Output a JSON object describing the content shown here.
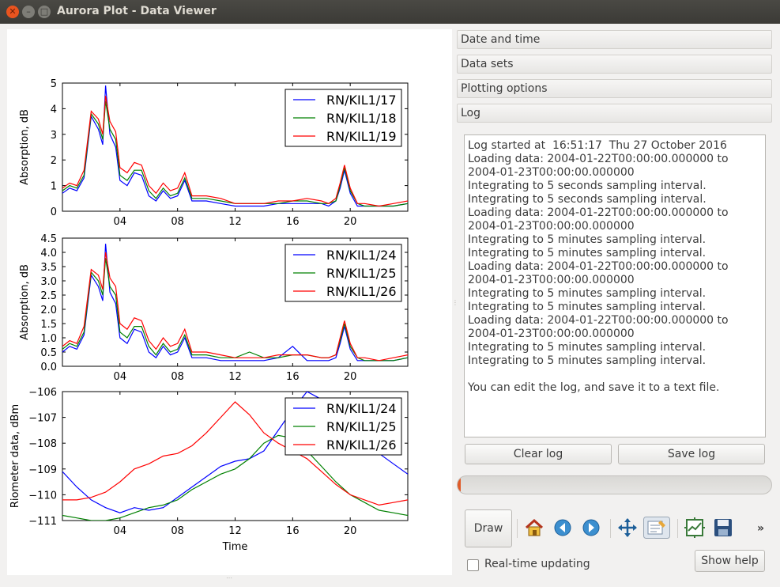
{
  "window": {
    "title": "Aurora Plot - Data Viewer"
  },
  "sections": [
    "Date and time",
    "Data sets",
    "Plotting options",
    "Log"
  ],
  "log": {
    "lines": [
      "Log started at  16:51:17  Thu 27 October 2016",
      "Loading data: 2004-01-22T00:00:00.000000 to",
      "2004-01-23T00:00:00.000000",
      "Integrating to 5 seconds sampling interval.",
      "Integrating to 5 seconds sampling interval.",
      "Loading data: 2004-01-22T00:00:00.000000 to",
      "2004-01-23T00:00:00.000000",
      "Integrating to 5 minutes sampling interval.",
      "Integrating to 5 minutes sampling interval.",
      "Loading data: 2004-01-22T00:00:00.000000 to",
      "2004-01-23T00:00:00.000000",
      "Integrating to 5 minutes sampling interval.",
      "Integrating to 5 minutes sampling interval.",
      "Loading data: 2004-01-22T00:00:00.000000 to",
      "2004-01-23T00:00:00.000000",
      "Integrating to 5 minutes sampling interval.",
      "Integrating to 5 minutes sampling interval.",
      "",
      "You can edit the log, and save it to a text file."
    ]
  },
  "buttons": {
    "clear_log": "Clear log",
    "save_log": "Save log",
    "draw": "Draw",
    "show_help": "Show help"
  },
  "progress": {
    "value_fraction": 0.01,
    "color": "#e05a27"
  },
  "realtime": {
    "label": "Real-time updating",
    "checked": false
  },
  "toolbar_icons": [
    "home-icon",
    "back-icon",
    "forward-icon",
    "pan-icon",
    "zoom-icon",
    "configure-subplots-icon",
    "save-figure-icon",
    "more-chevron-icon"
  ],
  "toolbar_overflow": "»",
  "chart_data": [
    {
      "type": "line",
      "ylabel": "Absorption, dB",
      "xlabel": "",
      "xlim": [
        0,
        24
      ],
      "ylim": [
        0,
        5
      ],
      "yticks": [
        "0",
        "1",
        "2",
        "3",
        "4",
        "5"
      ],
      "xticks": [
        4,
        8,
        12,
        16,
        20
      ],
      "xtick_labels": [
        "04",
        "08",
        "12",
        "16",
        "20"
      ],
      "legend": "top-right",
      "x": [
        0,
        0.5,
        1,
        1.5,
        2,
        2.5,
        2.8,
        3,
        3.3,
        3.7,
        4,
        4.5,
        5,
        5.5,
        6,
        6.5,
        7,
        7.5,
        8,
        8.5,
        9,
        10,
        11,
        12,
        13,
        14,
        15,
        16,
        17,
        18,
        18.5,
        19,
        19.3,
        19.6,
        20,
        20.5,
        21,
        22,
        23,
        24
      ],
      "series": [
        {
          "name": "RN/KIL1/17",
          "color": "#0000ff",
          "values": [
            0.7,
            0.9,
            0.8,
            1.3,
            3.7,
            3.2,
            2.6,
            4.9,
            3.0,
            2.5,
            1.2,
            1.0,
            1.5,
            1.4,
            0.6,
            0.4,
            0.8,
            0.5,
            0.6,
            1.2,
            0.4,
            0.4,
            0.3,
            0.2,
            0.2,
            0.2,
            0.3,
            0.3,
            0.3,
            0.3,
            0.2,
            0.4,
            0.9,
            1.6,
            0.7,
            0.2,
            0.2,
            0.2,
            0.2,
            0.3
          ]
        },
        {
          "name": "RN/KIL1/18",
          "color": "#008000",
          "values": [
            0.8,
            1.0,
            0.9,
            1.4,
            3.8,
            3.4,
            2.8,
            4.3,
            3.2,
            2.8,
            1.4,
            1.2,
            1.6,
            1.6,
            0.8,
            0.5,
            0.9,
            0.6,
            0.7,
            1.3,
            0.5,
            0.5,
            0.4,
            0.3,
            0.3,
            0.3,
            0.3,
            0.4,
            0.4,
            0.3,
            0.3,
            0.4,
            1.0,
            1.7,
            0.8,
            0.3,
            0.2,
            0.2,
            0.2,
            0.3
          ]
        },
        {
          "name": "RN/KIL1/19",
          "color": "#ff0000",
          "values": [
            0.9,
            1.1,
            1.0,
            1.6,
            3.9,
            3.6,
            3.0,
            4.5,
            3.5,
            3.1,
            1.7,
            1.5,
            1.9,
            1.8,
            1.0,
            0.7,
            1.1,
            0.8,
            0.9,
            1.5,
            0.6,
            0.6,
            0.5,
            0.3,
            0.3,
            0.3,
            0.4,
            0.4,
            0.5,
            0.4,
            0.3,
            0.5,
            1.1,
            1.8,
            0.9,
            0.3,
            0.3,
            0.2,
            0.3,
            0.4
          ]
        }
      ]
    },
    {
      "type": "line",
      "ylabel": "Absorption, dB",
      "xlabel": "",
      "xlim": [
        0,
        24
      ],
      "ylim": [
        0,
        4.5
      ],
      "yticks": [
        "0.0",
        "0.5",
        "1.0",
        "1.5",
        "2.0",
        "2.5",
        "3.0",
        "3.5",
        "4.0",
        "4.5"
      ],
      "xticks": [
        4,
        8,
        12,
        16,
        20
      ],
      "xtick_labels": [
        "04",
        "08",
        "12",
        "16",
        "20"
      ],
      "legend": "top-right",
      "x": [
        0,
        0.5,
        1,
        1.5,
        2,
        2.5,
        2.8,
        3,
        3.3,
        3.7,
        4,
        4.5,
        5,
        5.5,
        6,
        6.5,
        7,
        7.5,
        8,
        8.5,
        9,
        10,
        11,
        12,
        13,
        14,
        15,
        16,
        17,
        18,
        18.5,
        19,
        19.3,
        19.6,
        20,
        20.5,
        21,
        22,
        23,
        24
      ],
      "series": [
        {
          "name": "RN/KIL1/24",
          "color": "#0000ff",
          "values": [
            0.5,
            0.7,
            0.6,
            1.1,
            3.2,
            2.8,
            2.3,
            4.3,
            2.6,
            2.2,
            1.0,
            0.8,
            1.3,
            1.2,
            0.5,
            0.3,
            0.7,
            0.4,
            0.5,
            1.0,
            0.3,
            0.3,
            0.2,
            0.2,
            0.2,
            0.2,
            0.3,
            0.7,
            0.2,
            0.2,
            0.2,
            0.3,
            0.8,
            1.4,
            0.6,
            0.2,
            0.2,
            0.2,
            0.2,
            0.3
          ]
        },
        {
          "name": "RN/KIL1/25",
          "color": "#008000",
          "values": [
            0.6,
            0.8,
            0.7,
            1.2,
            3.3,
            3.0,
            2.5,
            3.8,
            2.8,
            2.5,
            1.2,
            1.0,
            1.4,
            1.4,
            0.7,
            0.4,
            0.8,
            0.5,
            0.6,
            1.1,
            0.4,
            0.4,
            0.3,
            0.3,
            0.5,
            0.3,
            0.3,
            0.4,
            0.4,
            0.3,
            0.3,
            0.4,
            0.9,
            1.5,
            0.7,
            0.3,
            0.2,
            0.2,
            0.2,
            0.3
          ]
        },
        {
          "name": "RN/KIL1/26",
          "color": "#ff0000",
          "values": [
            0.7,
            0.9,
            0.8,
            1.4,
            3.4,
            3.2,
            2.7,
            4.0,
            3.1,
            2.8,
            1.5,
            1.3,
            1.7,
            1.6,
            0.9,
            0.6,
            1.0,
            0.7,
            0.8,
            1.3,
            0.5,
            0.5,
            0.4,
            0.3,
            0.3,
            0.3,
            0.4,
            0.4,
            0.4,
            0.3,
            0.3,
            0.4,
            1.0,
            1.6,
            0.8,
            0.3,
            0.3,
            0.2,
            0.3,
            0.4
          ]
        }
      ]
    },
    {
      "type": "line",
      "ylabel": "Riometer data, dBm",
      "xlabel": "Time",
      "xlim": [
        0,
        24
      ],
      "ylim": [
        -111,
        -106
      ],
      "yticks": [
        "−111",
        "−110",
        "−109",
        "−108",
        "−107",
        "−106"
      ],
      "xticks": [
        4,
        8,
        12,
        16,
        20
      ],
      "xtick_labels": [
        "04",
        "08",
        "12",
        "16",
        "20"
      ],
      "legend": "top-right",
      "x": [
        0,
        1,
        2,
        3,
        4,
        5,
        6,
        7,
        8,
        9,
        10,
        11,
        12,
        13,
        14,
        15,
        16,
        17,
        18,
        19,
        20,
        21,
        22,
        23,
        24
      ],
      "series": [
        {
          "name": "RN/KIL1/24",
          "color": "#0000ff",
          "values": [
            -109.1,
            -109.7,
            -110.2,
            -110.5,
            -110.7,
            -110.5,
            -110.6,
            -110.5,
            -110.1,
            -109.7,
            -109.3,
            -108.9,
            -108.7,
            -108.6,
            -108.3,
            -107.5,
            -106.7,
            -106.0,
            -106.3,
            -106.8,
            -107.4,
            -107.9,
            -108.4,
            -108.8,
            -109.2
          ]
        },
        {
          "name": "RN/KIL1/25",
          "color": "#008000",
          "values": [
            -110.8,
            -110.9,
            -111.0,
            -111.0,
            -110.9,
            -110.7,
            -110.5,
            -110.4,
            -110.2,
            -109.8,
            -109.5,
            -109.2,
            -109.0,
            -108.6,
            -108.0,
            -107.7,
            -107.8,
            -108.3,
            -108.9,
            -109.5,
            -110.0,
            -110.3,
            -110.6,
            -110.7,
            -110.8
          ]
        },
        {
          "name": "RN/KIL1/26",
          "color": "#ff0000",
          "values": [
            -110.2,
            -110.2,
            -110.1,
            -109.9,
            -109.5,
            -109.0,
            -108.8,
            -108.5,
            -108.4,
            -108.1,
            -107.6,
            -107.0,
            -106.4,
            -106.9,
            -107.6,
            -108.0,
            -108.3,
            -108.6,
            -109.1,
            -109.6,
            -110.0,
            -110.2,
            -110.4,
            -110.3,
            -110.2
          ]
        }
      ]
    }
  ]
}
